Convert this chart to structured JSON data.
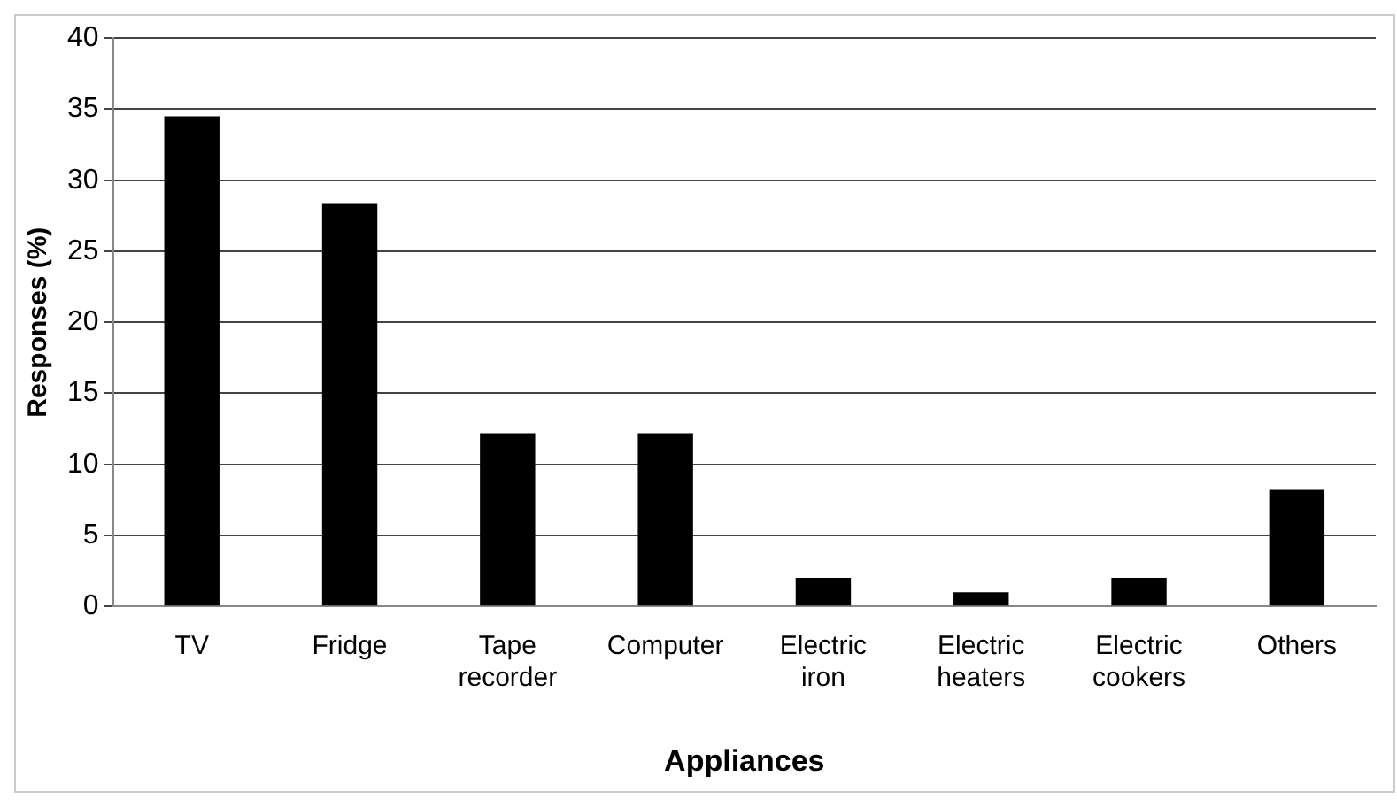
{
  "chart_data": {
    "type": "bar",
    "xlabel": "Appliances",
    "ylabel": "Responses (%)",
    "categories": [
      "TV",
      "Fridge",
      "Tape recorder",
      "Computer",
      "Electric iron",
      "Electric heaters",
      "Electric cookers",
      "Others"
    ],
    "values": [
      34.5,
      28.4,
      12.2,
      12.2,
      2.0,
      1.0,
      2.0,
      8.2
    ],
    "color": "#000000",
    "ylim": [
      0,
      40
    ],
    "yticks": [
      0,
      5,
      10,
      15,
      20,
      25,
      30,
      35,
      40
    ],
    "grid": "y",
    "legend": false
  }
}
